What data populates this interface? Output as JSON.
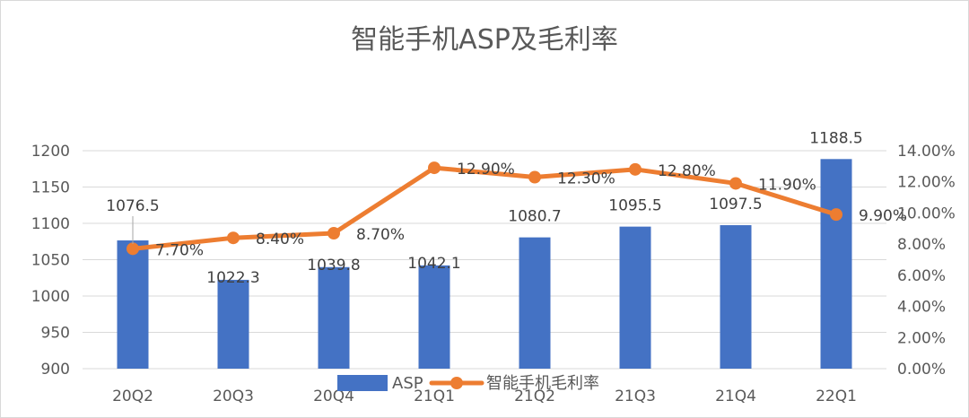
{
  "chart_data": {
    "type": "bar",
    "title": "智能手机ASP及毛利率",
    "categories": [
      "20Q2",
      "20Q3",
      "20Q4",
      "21Q1",
      "21Q2",
      "21Q3",
      "21Q4",
      "22Q1"
    ],
    "series": [
      {
        "name": "ASP",
        "type": "bar",
        "axis": "left",
        "values": [
          1076.5,
          1022.3,
          1039.8,
          1042.1,
          1080.7,
          1095.5,
          1097.5,
          1188.5
        ],
        "labels": [
          "1076.5",
          "1022.3",
          "1039.8",
          "1042.1",
          "1080.7",
          "1095.5",
          "1097.5",
          "1188.5"
        ],
        "color": "#4472C4"
      },
      {
        "name": "智能手机毛利率",
        "type": "line",
        "axis": "right",
        "values": [
          7.7,
          8.4,
          8.7,
          12.9,
          12.3,
          12.8,
          11.9,
          9.9
        ],
        "labels": [
          "7.70%",
          "8.40%",
          "8.70%",
          "12.90%",
          "12.30%",
          "12.80%",
          "11.90%",
          "9.90%"
        ],
        "color": "#ED7D31"
      }
    ],
    "y_left": {
      "min": 900,
      "max": 1200,
      "step": 50,
      "ticks": [
        "900",
        "950",
        "1000",
        "1050",
        "1100",
        "1150",
        "1200"
      ]
    },
    "y_right": {
      "min": 0,
      "max": 14,
      "step": 2,
      "ticks": [
        "0.00%",
        "2.00%",
        "4.00%",
        "6.00%",
        "8.00%",
        "10.00%",
        "12.00%",
        "14.00%"
      ]
    },
    "grid": true,
    "legend": "bottom-center"
  }
}
